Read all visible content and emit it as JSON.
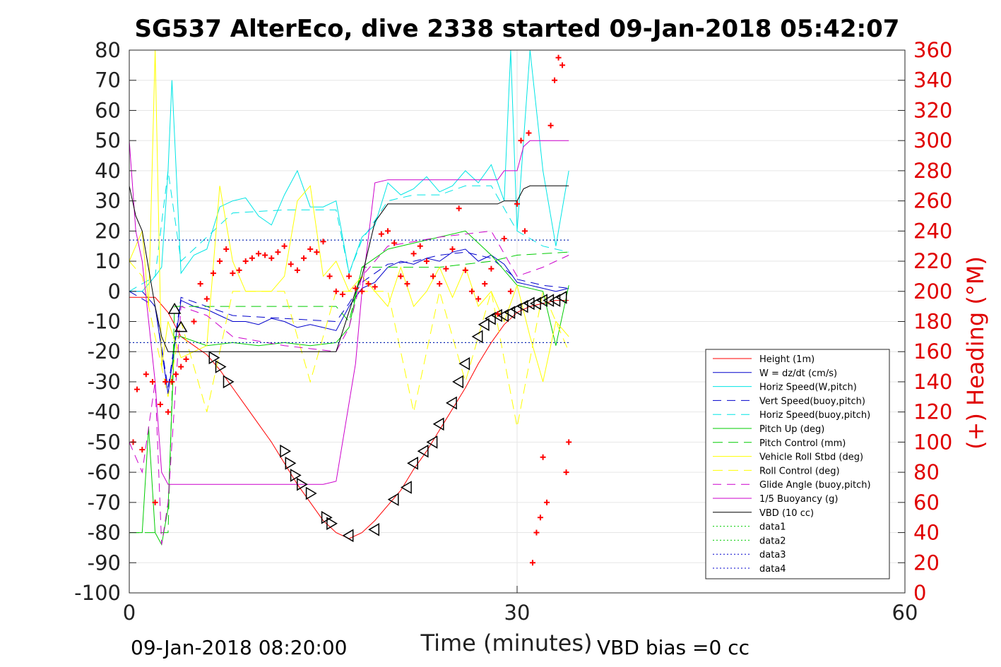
{
  "chart_data": {
    "type": "line",
    "title": "SG537 AlterEco, dive 2338 started 09-Jan-2018 05:42:07",
    "xlabel": "Time (minutes)",
    "ylabel_right": "(+) Heading (°M)",
    "xlim": [
      0,
      60
    ],
    "ylim_left": [
      -100,
      80
    ],
    "ylim_right": [
      0,
      360
    ],
    "x_ticks": [
      "0",
      "30",
      "60"
    ],
    "y_ticks_left": [
      "80",
      "70",
      "60",
      "50",
      "40",
      "30",
      "20",
      "10",
      "0",
      "-10",
      "-20",
      "-30",
      "-40",
      "-50",
      "-60",
      "-70",
      "-80",
      "-90",
      "-100"
    ],
    "y_ticks_right": [
      "360",
      "340",
      "320",
      "300",
      "280",
      "260",
      "240",
      "220",
      "200",
      "180",
      "160",
      "140",
      "120",
      "100",
      "80",
      "60",
      "40",
      "20",
      "0"
    ],
    "grid": true,
    "legend_position": "bottom-right",
    "footer_left": "09-Jan-2018 08:20:00",
    "footer_right": "VBD bias =0 cc",
    "colors": {
      "height": "#ff0000",
      "w": "#0000cc",
      "horiz_speed": "#00e5e5",
      "pitch": "#00cc00",
      "roll": "#ffff00",
      "glide": "#cc00cc",
      "vbd": "#000000",
      "heading": "#ff0000",
      "tick_right": "#e00000"
    },
    "series": [
      {
        "name": "Height (1m)",
        "color": "#ff0000",
        "dash": "",
        "width": 1,
        "x": [
          0,
          1,
          2,
          3,
          4,
          5,
          6,
          7,
          8,
          9,
          10,
          11,
          12,
          13,
          14,
          15,
          16,
          17,
          18,
          19,
          20,
          21,
          22,
          23,
          24,
          25,
          26,
          27,
          28,
          29,
          30,
          31,
          32,
          33,
          34
        ],
        "y": [
          -2,
          -2,
          -2,
          -7,
          -15,
          -18,
          -21,
          -26,
          -32,
          -38,
          -44,
          -50,
          -57,
          -64,
          -70,
          -76,
          -80,
          -82,
          -80,
          -76,
          -71,
          -66,
          -59,
          -53,
          -46,
          -39,
          -32,
          -24,
          -17,
          -11,
          -7,
          -5,
          -4,
          -3,
          -3
        ]
      },
      {
        "name": "W = dz/dt (cm/s)",
        "color": "#0000cc",
        "dash": "",
        "width": 1,
        "x": [
          0,
          1,
          2,
          3,
          4,
          5,
          6,
          7,
          8,
          9,
          10,
          11,
          12,
          13,
          14,
          15,
          16,
          17,
          18,
          19,
          20,
          21,
          22,
          23,
          24,
          25,
          26,
          27,
          28,
          29,
          30,
          31,
          32,
          33,
          34
        ],
        "y": [
          0,
          0,
          -5,
          -34,
          -3,
          -5,
          -6,
          -8,
          -10,
          -10,
          -11,
          -9,
          -10,
          -12,
          -11,
          -12,
          -13,
          -5,
          1,
          3,
          8,
          10,
          9,
          11,
          10,
          13,
          14,
          10,
          12,
          9,
          3,
          2,
          1,
          0,
          1
        ]
      },
      {
        "name": "Horiz Speed(W,pitch)",
        "color": "#00e5e5",
        "dash": "",
        "width": 1,
        "x": [
          0,
          1,
          2,
          2.5,
          3,
          3.3,
          4,
          5,
          6,
          7,
          8,
          9,
          10,
          11,
          12,
          13,
          14,
          15,
          16,
          17,
          18,
          19,
          20,
          21,
          22,
          23,
          24,
          25,
          26,
          27,
          28,
          29,
          29.5,
          30,
          31,
          32,
          33,
          34
        ],
        "y": [
          0,
          0,
          5,
          8,
          40,
          70,
          6,
          12,
          14,
          28,
          30,
          31,
          25,
          22,
          32,
          40,
          28,
          28,
          30,
          6,
          18,
          22,
          36,
          32,
          34,
          38,
          33,
          35,
          40,
          36,
          42,
          30,
          80,
          20,
          80,
          40,
          15,
          40
        ]
      },
      {
        "name": "Vert Speed(buoy,pitch)",
        "color": "#0000cc",
        "dash": "12,8",
        "width": 1,
        "x": [
          0,
          2,
          3,
          4,
          8,
          12,
          16,
          17,
          18,
          20,
          22,
          24,
          26,
          28,
          30,
          32,
          34
        ],
        "y": [
          0,
          -5,
          -32,
          -2,
          -8,
          -9,
          -10,
          -4,
          3,
          9,
          10,
          12,
          13,
          11,
          4,
          2,
          1
        ]
      },
      {
        "name": "Horiz Speed(buoy,pitch)",
        "color": "#00e5e5",
        "dash": "12,8",
        "width": 1,
        "x": [
          0,
          2,
          3,
          4,
          8,
          12,
          16,
          17,
          18,
          20,
          22,
          24,
          26,
          28,
          30,
          32,
          34
        ],
        "y": [
          0,
          5,
          40,
          10,
          26,
          27,
          27,
          6,
          17,
          30,
          32,
          32,
          35,
          35,
          20,
          15,
          13
        ]
      },
      {
        "name": "Pitch Up (deg)",
        "color": "#00cc00",
        "dash": "",
        "width": 1,
        "x": [
          0,
          1,
          1.5,
          2,
          2.5,
          3,
          3.5,
          4,
          6,
          8,
          10,
          12,
          14,
          16,
          17,
          18,
          20,
          22,
          24,
          26,
          28,
          30,
          32,
          33,
          34
        ],
        "y": [
          -80,
          -80,
          -45,
          -80,
          -84,
          -72,
          -15,
          -15,
          -18,
          -17,
          -18,
          -17,
          -18,
          -17,
          -12,
          8,
          14,
          16,
          18,
          20,
          12,
          2,
          0,
          -18,
          2
        ]
      },
      {
        "name": "Pitch Control (mm)",
        "color": "#00cc00",
        "dash": "14,8",
        "width": 1,
        "x": [
          0,
          3,
          3.5,
          4,
          10,
          16,
          17,
          18,
          24,
          28,
          30,
          34
        ],
        "y": [
          -80,
          -80,
          -5,
          -5,
          -5,
          -5,
          -10,
          8,
          8,
          10,
          12,
          13
        ]
      },
      {
        "name": "Vehicle Roll Stbd (deg)",
        "color": "#ffff00",
        "dash": "",
        "width": 1,
        "x": [
          0,
          1,
          1.5,
          2,
          2.5,
          3,
          4,
          5,
          6,
          7,
          8,
          9,
          10,
          11,
          12,
          13,
          14,
          15,
          16,
          17,
          18,
          19,
          20,
          21,
          22,
          23,
          24,
          25,
          26,
          27,
          28,
          29,
          30,
          31,
          32,
          33,
          34
        ],
        "y": [
          10,
          20,
          -5,
          80,
          -25,
          -10,
          -22,
          -20,
          -18,
          35,
          10,
          0,
          0,
          0,
          5,
          30,
          35,
          5,
          10,
          0,
          5,
          0,
          -5,
          8,
          -5,
          0,
          8,
          -2,
          8,
          -5,
          0,
          -10,
          2,
          -15,
          -30,
          -10,
          -15
        ]
      },
      {
        "name": "Roll Control (deg)",
        "color": "#ffff00",
        "dash": "14,8",
        "width": 1,
        "x": [
          0,
          1,
          2,
          3,
          4,
          6,
          8,
          10,
          12,
          14,
          16,
          18,
          20,
          22,
          24,
          26,
          28,
          30,
          32,
          34
        ],
        "y": [
          10,
          5,
          -15,
          -35,
          -10,
          -40,
          0,
          0,
          0,
          -30,
          0,
          0,
          0,
          -40,
          0,
          -30,
          0,
          -45,
          0,
          -20
        ]
      },
      {
        "name": "Glide Angle (buoy,pitch)",
        "color": "#cc00cc",
        "dash": "12,8",
        "width": 1,
        "x": [
          0,
          1,
          2,
          2.5,
          3,
          4,
          6,
          8,
          12,
          16,
          17,
          18,
          20,
          24,
          28,
          30,
          32,
          34
        ],
        "y": [
          -50,
          -60,
          -30,
          -84,
          -70,
          -5,
          -8,
          -15,
          -18,
          -20,
          -12,
          5,
          15,
          18,
          20,
          5,
          8,
          12
        ]
      },
      {
        "name": "1/5 Buoyancy (g)",
        "color": "#cc00cc",
        "dash": "",
        "width": 1,
        "x": [
          0,
          0.5,
          1,
          2,
          2.5,
          3,
          5,
          8,
          12,
          15,
          16,
          17.5,
          18,
          19,
          20,
          24,
          28.5,
          29,
          30,
          30.5,
          31,
          33,
          34
        ],
        "y": [
          50,
          20,
          10,
          -30,
          -60,
          -64,
          -64,
          -64,
          -64,
          -64,
          -63,
          -24,
          0,
          36,
          37,
          37,
          37,
          40,
          40,
          48,
          50,
          50,
          50
        ]
      },
      {
        "name": "VBD (10 cc)",
        "color": "#000000",
        "dash": "",
        "width": 1,
        "x": [
          0,
          0.5,
          1,
          2,
          2.5,
          3,
          5,
          8,
          12,
          15,
          16,
          17.5,
          18,
          19,
          20,
          24,
          28.5,
          29,
          30,
          30.5,
          31,
          33,
          34
        ],
        "y": [
          35,
          25,
          20,
          -5,
          -15,
          -20,
          -20,
          -20,
          -20,
          -20,
          -20,
          0,
          5,
          23,
          29,
          29,
          29,
          30,
          30,
          34,
          35,
          35,
          35
        ]
      },
      {
        "name": "data1",
        "color": "#00cc00",
        "dash": "2,3",
        "width": 1,
        "x": [
          0,
          34
        ],
        "y": [
          -17,
          -17
        ]
      },
      {
        "name": "data2",
        "color": "#00cc00",
        "dash": "2,3",
        "width": 1,
        "x": [
          0,
          34
        ],
        "y": [
          17,
          17
        ]
      },
      {
        "name": "data3",
        "color": "#0000cc",
        "dash": "2,3",
        "width": 1,
        "x": [
          0,
          34
        ],
        "y": [
          -17,
          -17
        ]
      },
      {
        "name": "data4",
        "color": "#0000cc",
        "dash": "2,3",
        "width": 1,
        "x": [
          0,
          34
        ],
        "y": [
          17,
          17
        ]
      }
    ],
    "heading_series": {
      "color": "#ff0000",
      "marker": "+",
      "axis": "right",
      "x": [
        0.3,
        0.6,
        1.0,
        1.3,
        1.8,
        2.0,
        2.4,
        2.8,
        3.0,
        3.3,
        3.6,
        4.0,
        4.4,
        5.0,
        5.5,
        6.0,
        6.5,
        7.0,
        7.5,
        8.0,
        8.5,
        9.0,
        9.5,
        10.0,
        10.5,
        11.0,
        11.5,
        12.0,
        12.5,
        13.0,
        13.5,
        14.0,
        14.5,
        15.0,
        15.5,
        16.0,
        16.5,
        17.0,
        17.5,
        18.0,
        18.5,
        19.0,
        19.5,
        20.0,
        20.5,
        21.0,
        21.5,
        22.0,
        22.5,
        23.0,
        23.5,
        24.0,
        24.5,
        25.0,
        25.5,
        26.0,
        26.5,
        27.0,
        27.5,
        28.0,
        28.5,
        29.0,
        29.5,
        30.0,
        30.3,
        30.6,
        30.9,
        31.2,
        31.5,
        31.8,
        32.0,
        32.3,
        32.6,
        32.9,
        33.2,
        33.5,
        33.8,
        34.0
      ],
      "y": [
        100,
        135,
        95,
        145,
        140,
        60,
        125,
        140,
        120,
        140,
        145,
        150,
        155,
        180,
        205,
        195,
        212,
        220,
        228,
        212,
        214,
        220,
        222,
        225,
        224,
        222,
        226,
        230,
        218,
        214,
        222,
        228,
        226,
        233,
        210,
        200,
        198,
        210,
        202,
        200,
        205,
        203,
        238,
        240,
        232,
        210,
        205,
        225,
        230,
        220,
        210,
        205,
        215,
        228,
        255,
        214,
        200,
        195,
        205,
        215,
        185,
        235,
        200,
        258,
        300,
        240,
        305,
        20,
        40,
        50,
        90,
        60,
        310,
        340,
        355,
        350,
        80,
        100
      ]
    },
    "triangle_markers": {
      "color": "#000000",
      "x": [
        3.5,
        4.0,
        6.5,
        7.0,
        7.6,
        12.0,
        12.4,
        12.8,
        13.3,
        14.0,
        15.2,
        15.6,
        17.0,
        19.0,
        20.5,
        21.5,
        22.0,
        22.8,
        23.5,
        24.0,
        25.0,
        25.5,
        26.0,
        27.0,
        27.5,
        28.0,
        28.5,
        29.0,
        29.5,
        30.0,
        30.5,
        31.0,
        31.5,
        32.0,
        32.5,
        33.0,
        33.5
      ],
      "y": [
        -6,
        -12,
        -22,
        -25,
        -30,
        -53,
        -57,
        -61,
        -64,
        -67,
        -75,
        -77,
        -81,
        -79,
        -69,
        -65,
        -57,
        -53,
        -50,
        -44,
        -37,
        -30,
        -24,
        -15,
        -11,
        -9,
        -8,
        -8,
        -7,
        -6,
        -5,
        -4,
        -4,
        -3,
        -3,
        -3,
        -2
      ]
    }
  }
}
